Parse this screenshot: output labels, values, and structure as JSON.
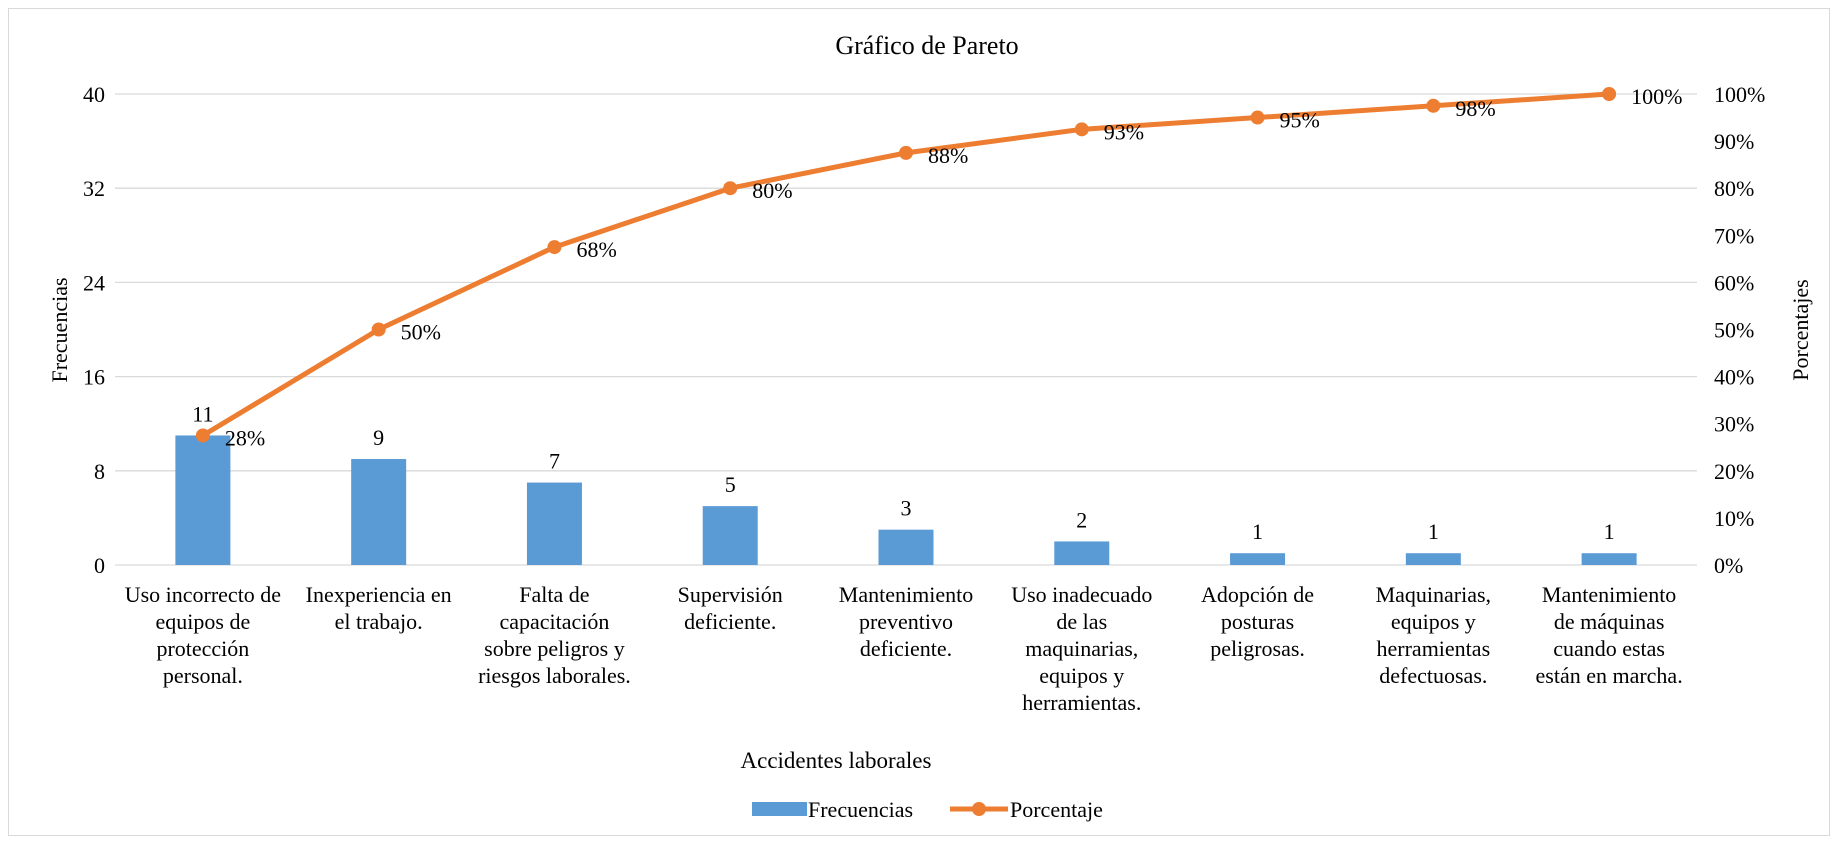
{
  "chart_data": {
    "type": "bar",
    "title": "Gráfico de Pareto",
    "xlabel": "Accidentes laborales",
    "ylabel": "Frecuencias",
    "y2label": "Porcentajes",
    "ylim": [
      0,
      40
    ],
    "y_ticks": [
      0,
      8,
      16,
      24,
      32,
      40
    ],
    "y2lim": [
      0,
      100
    ],
    "y2_ticks": [
      "0%",
      "10%",
      "20%",
      "30%",
      "40%",
      "50%",
      "60%",
      "70%",
      "80%",
      "90%",
      "100%"
    ],
    "grid": true,
    "legend_position": "bottom",
    "categories": [
      [
        "Uso incorrecto de",
        "equipos de",
        "protección",
        "personal."
      ],
      [
        "Inexperiencia en",
        "el trabajo."
      ],
      [
        "Falta de",
        "capacitación",
        "sobre peligros y",
        "riesgos laborales."
      ],
      [
        "Supervisión",
        "deficiente."
      ],
      [
        "Mantenimiento",
        "preventivo",
        "deficiente."
      ],
      [
        "Uso inadecuado",
        "de las",
        "maquinarias,",
        "equipos y",
        "herramientas."
      ],
      [
        "Adopción de",
        "posturas",
        "peligrosas."
      ],
      [
        "Maquinarias,",
        "equipos y",
        "herramientas",
        "defectuosas."
      ],
      [
        "Mantenimiento",
        "de máquinas",
        "cuando estas",
        "están en marcha."
      ]
    ],
    "series": [
      {
        "name": "Frecuencias",
        "type": "bar",
        "axis": "left",
        "color": "#5b9bd5",
        "values": [
          11,
          9,
          7,
          5,
          3,
          2,
          1,
          1,
          1
        ],
        "labels": [
          "11",
          "9",
          "7",
          "5",
          "3",
          "2",
          "1",
          "1",
          "1"
        ]
      },
      {
        "name": "Porcentaje",
        "type": "line",
        "axis": "right",
        "color": "#ed7d31",
        "values": [
          27.5,
          50,
          67.5,
          80,
          87.5,
          92.5,
          95,
          97.5,
          100
        ],
        "labels": [
          "28%",
          "50%",
          "68%",
          "80%",
          "88%",
          "93%",
          "95%",
          "98%",
          "100%"
        ]
      }
    ]
  }
}
